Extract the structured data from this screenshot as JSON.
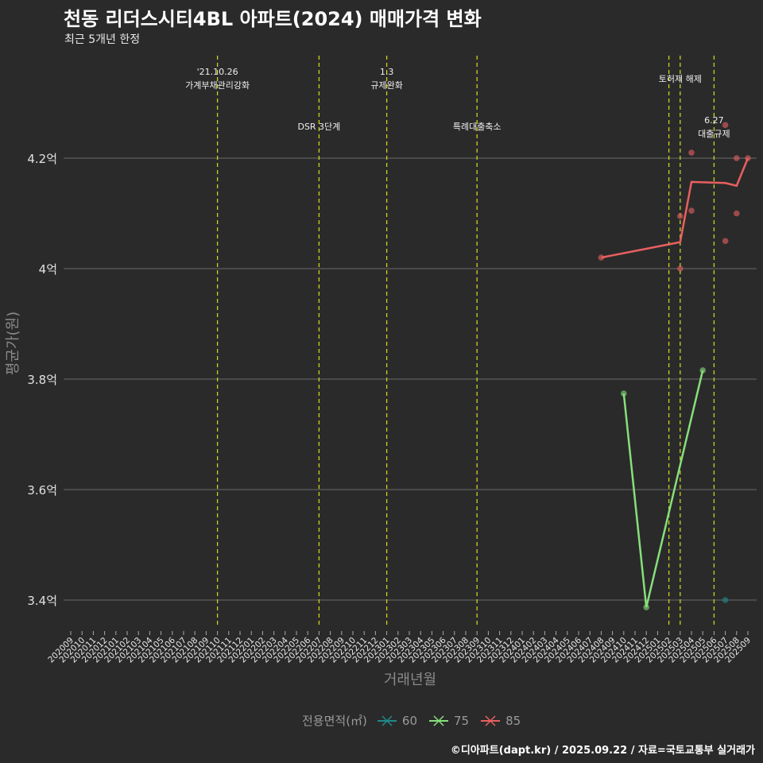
{
  "header": {
    "title": "천동 리더스시티4BL 아파트(2024) 매매가격 변화",
    "subtitle": "최근 5개년 한정"
  },
  "caption": "©디아파트(dapt.kr) / 2025.09.22 / 자료=국토교통부 실거래가",
  "chart_data": {
    "type": "line",
    "title": "천동 리더스시티4BL 아파트(2024) 매매가격 변화",
    "subtitle": "최근 5개년 한정",
    "xlabel": "거래년월",
    "ylabel": "평균가(원)",
    "x": [
      "202009",
      "202010",
      "202011",
      "202012",
      "202101",
      "202102",
      "202103",
      "202104",
      "202105",
      "202106",
      "202107",
      "202108",
      "202109",
      "202110",
      "202111",
      "202112",
      "202201",
      "202202",
      "202203",
      "202204",
      "202205",
      "202206",
      "202207",
      "202208",
      "202209",
      "202210",
      "202211",
      "202212",
      "202301",
      "202302",
      "202303",
      "202304",
      "202305",
      "202306",
      "202307",
      "202308",
      "202309",
      "202310",
      "202311",
      "202312",
      "202401",
      "202402",
      "202403",
      "202404",
      "202405",
      "202406",
      "202407",
      "202408",
      "202409",
      "202410",
      "202411",
      "202412",
      "202501",
      "202502",
      "202503",
      "202504",
      "202505",
      "202506",
      "202507",
      "202508",
      "202509"
    ],
    "ylim": [
      3.35,
      4.3
    ],
    "yticks": [
      {
        "v": 3.4,
        "label": "3.4억"
      },
      {
        "v": 3.6,
        "label": "3.6억"
      },
      {
        "v": 3.8,
        "label": "3.8억"
      },
      {
        "v": 4.0,
        "label": "4억"
      },
      {
        "v": 4.2,
        "label": "4.2억"
      }
    ],
    "grid": true,
    "legend": {
      "title": "전용면적(㎡)",
      "position": "bottom"
    },
    "series": [
      {
        "name": "60",
        "color": "#1f8a8a",
        "line": [
          [
            "202507",
            3.4
          ]
        ],
        "points": [
          [
            "202507",
            3.4
          ]
        ]
      },
      {
        "name": "75",
        "color": "#86e07a",
        "line": [
          [
            "202410",
            3.774
          ],
          [
            "202412",
            3.387
          ],
          [
            "202505",
            3.816
          ]
        ],
        "points": [
          [
            "202410",
            3.774
          ],
          [
            "202412",
            3.387
          ],
          [
            "202505",
            3.816
          ]
        ]
      },
      {
        "name": "85",
        "color": "#e8605f",
        "line": [
          [
            "202408",
            4.02
          ],
          [
            "202503",
            4.048
          ],
          [
            "202504",
            4.157
          ],
          [
            "202507",
            4.155
          ],
          [
            "202508",
            4.15
          ],
          [
            "202509",
            4.2
          ]
        ],
        "points": [
          [
            "202408",
            4.02
          ],
          [
            "202503",
            4.095
          ],
          [
            "202503",
            4.0
          ],
          [
            "202504",
            4.21
          ],
          [
            "202504",
            4.105
          ],
          [
            "202507",
            4.26
          ],
          [
            "202507",
            4.05
          ],
          [
            "202508",
            4.2
          ],
          [
            "202508",
            4.1
          ],
          [
            "202509",
            4.2
          ]
        ]
      }
    ],
    "events": [
      {
        "month": "202110",
        "lines": [
          "'21.10.26",
          "가계부채관리강화"
        ]
      },
      {
        "month": "202207",
        "lines": [
          "DSR 3단계"
        ]
      },
      {
        "month": "202301",
        "lines": [
          "1.3",
          "규제완화"
        ]
      },
      {
        "month": "202309",
        "lines": [
          "특례대출축소"
        ]
      },
      {
        "month": "202502",
        "lines": []
      },
      {
        "month": "202503",
        "lines": [
          "토허제 해제"
        ]
      },
      {
        "month": "202506",
        "lines": [
          "6.27",
          "대출규제"
        ]
      }
    ]
  }
}
